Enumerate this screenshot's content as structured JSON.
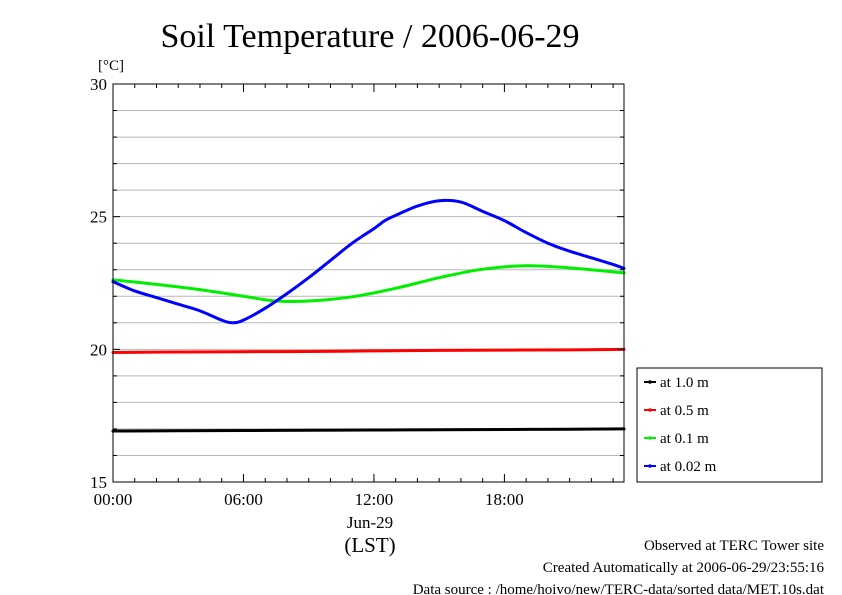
{
  "chart_data": {
    "type": "line",
    "title": "Soil Temperature / 2006-06-29",
    "ylabel": "[°C]",
    "xlabel": "(LST)",
    "x_sublabel": "Jun-29",
    "xlim": [
      0,
      23.5
    ],
    "ylim": [
      15,
      30
    ],
    "yticks": [
      15,
      20,
      25,
      30
    ],
    "yticks_labels": [
      "15",
      "20",
      "25",
      "30"
    ],
    "xticks": [
      0,
      6,
      12,
      18
    ],
    "xticks_labels": [
      "00:00",
      "06:00",
      "12:00",
      "18:00"
    ],
    "grid": true,
    "legend_position": "right",
    "series": [
      {
        "name": "at 1.0 m",
        "color": "#000000",
        "x": [
          0,
          3,
          6,
          9,
          12,
          15,
          18,
          21,
          23.5
        ],
        "y": [
          16.92,
          16.93,
          16.94,
          16.95,
          16.96,
          16.97,
          16.98,
          16.99,
          17.0
        ]
      },
      {
        "name": "at 0.5 m",
        "color": "#ff0000",
        "x": [
          0,
          3,
          6,
          9,
          12,
          15,
          18,
          21,
          23.5
        ],
        "y": [
          19.88,
          19.9,
          19.91,
          19.92,
          19.94,
          19.96,
          19.97,
          19.98,
          20.0
        ]
      },
      {
        "name": "at 0.1 m",
        "color": "#00ee00",
        "x": [
          0,
          2,
          4,
          6,
          7.5,
          9,
          11,
          13,
          15,
          17,
          19,
          21,
          23.5
        ],
        "y": [
          22.62,
          22.45,
          22.25,
          22.0,
          21.82,
          21.82,
          21.98,
          22.3,
          22.7,
          23.02,
          23.15,
          23.07,
          22.88
        ]
      },
      {
        "name": "at 0.02 m",
        "color": "#0000ff",
        "x": [
          0,
          1,
          2,
          3,
          4,
          5,
          5.5,
          6,
          7,
          8,
          9,
          10,
          11,
          12,
          12.5,
          13,
          14,
          15,
          16,
          17,
          18,
          19,
          20,
          21,
          22,
          23,
          23.5
        ],
        "y": [
          22.55,
          22.2,
          21.95,
          21.7,
          21.45,
          21.1,
          21.0,
          21.1,
          21.55,
          22.1,
          22.7,
          23.35,
          24.0,
          24.55,
          24.85,
          25.05,
          25.4,
          25.6,
          25.55,
          25.2,
          24.85,
          24.4,
          24.0,
          23.7,
          23.45,
          23.2,
          23.05
        ]
      }
    ]
  },
  "footer": {
    "line1": "Observed at TERC Tower site",
    "line2": "Created Automatically at 2006-06-29/23:55:16",
    "line3": "Data source : /home/hoivo/new/TERC-data/sorted  data/MET.10s.dat"
  }
}
